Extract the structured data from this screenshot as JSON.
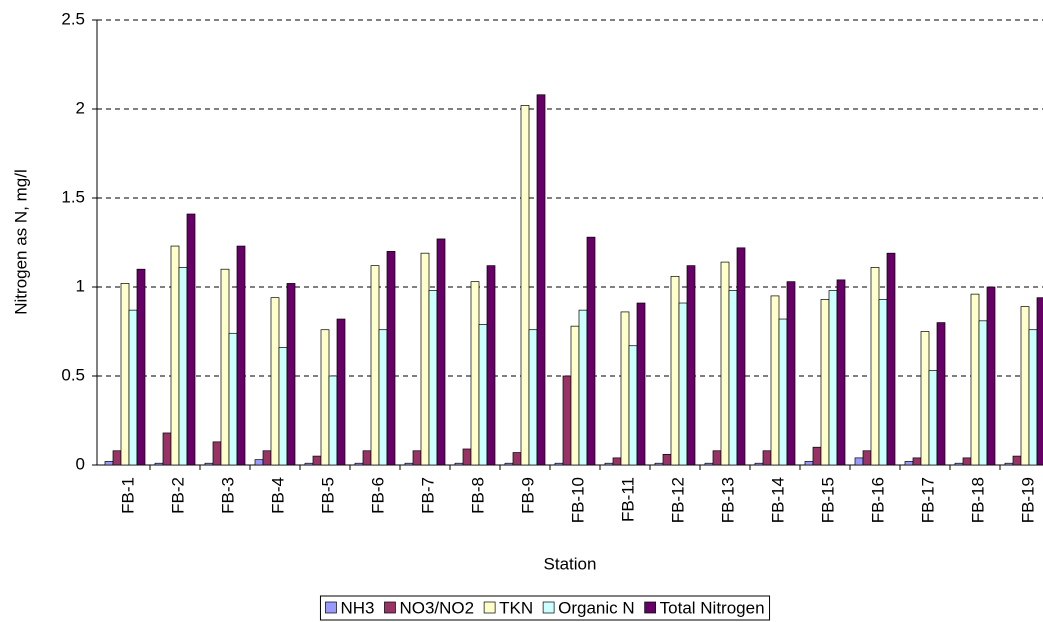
{
  "chart_data": {
    "type": "bar",
    "x_label": "Station",
    "y_label": "Nitrogen as N, mg/l",
    "categories": [
      "FB-1",
      "FB-2",
      "FB-3",
      "FB-4",
      "FB-5",
      "FB-6",
      "FB-7",
      "FB-8",
      "FB-9",
      "FB-10",
      "FB-11",
      "FB-12",
      "FB-13",
      "FB-14",
      "FB-15",
      "FB-16",
      "FB-17",
      "FB-18",
      "FB-19"
    ],
    "series": [
      {
        "name": "NH3",
        "color": "#9999ff",
        "values": [
          0.02,
          0.01,
          0.01,
          0.03,
          0.01,
          0.01,
          0.01,
          0.01,
          0.01,
          0.01,
          0.01,
          0.01,
          0.01,
          0.01,
          0.02,
          0.04,
          0.02,
          0.01,
          0.01
        ]
      },
      {
        "name": "NO3/NO2",
        "color": "#993366",
        "values": [
          0.08,
          0.18,
          0.13,
          0.08,
          0.05,
          0.08,
          0.08,
          0.09,
          0.07,
          0.5,
          0.04,
          0.06,
          0.08,
          0.08,
          0.1,
          0.08,
          0.04,
          0.04,
          0.05
        ]
      },
      {
        "name": "TKN",
        "color": "#ffffcc",
        "values": [
          1.02,
          1.23,
          1.1,
          0.94,
          0.76,
          1.12,
          1.19,
          1.03,
          2.02,
          0.78,
          0.86,
          1.06,
          1.14,
          0.95,
          0.93,
          1.11,
          0.75,
          0.96,
          0.89
        ]
      },
      {
        "name": "Organic N",
        "color": "#ccffff",
        "values": [
          0.87,
          1.11,
          0.74,
          0.66,
          0.5,
          0.76,
          0.98,
          0.79,
          0.76,
          0.87,
          0.67,
          0.91,
          0.98,
          0.82,
          0.98,
          0.93,
          0.53,
          0.81,
          0.76
        ]
      },
      {
        "name": "Total Nitrogen",
        "color": "#660066",
        "values": [
          1.1,
          1.41,
          1.23,
          1.02,
          0.82,
          1.2,
          1.27,
          1.12,
          2.08,
          1.28,
          0.91,
          1.12,
          1.22,
          1.03,
          1.04,
          1.19,
          0.8,
          1.0,
          0.94
        ]
      }
    ],
    "ylim": [
      0,
      2.5
    ],
    "yticks": [
      0,
      0.5,
      1,
      1.5,
      2,
      2.5
    ],
    "grid": true,
    "legend": "bottom"
  }
}
